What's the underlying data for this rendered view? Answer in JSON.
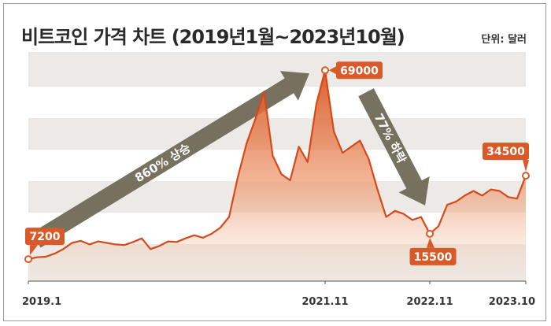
{
  "title": "비트코인 가격 차트 (2019년1월~2023년10월)",
  "unit": "단위: 달러",
  "colors": {
    "line": "#d54a1a",
    "callout": "#d95a28",
    "arrow": "#6b6553"
  },
  "chart_data": {
    "type": "area",
    "ylim": [
      0,
      75000
    ],
    "x_ticks": [
      "2019.1",
      "2021.11",
      "2022.11",
      "2023.10"
    ],
    "callouts": [
      {
        "label": "7200",
        "date": "2019.1",
        "value": 7200
      },
      {
        "label": "69000",
        "date": "2021.11",
        "value": 69000
      },
      {
        "label": "15500",
        "date": "2022.11",
        "value": 15500
      },
      {
        "label": "34500",
        "date": "2023.10",
        "value": 34500
      }
    ],
    "annotations": [
      {
        "text": "860% 상승",
        "from": "2019.1",
        "to": "2021.11"
      },
      {
        "text": "77% 하락",
        "from": "2021.11",
        "to": "2022.11"
      }
    ],
    "series": [
      {
        "x": [
          "2019-01",
          "2019-02",
          "2019-03",
          "2019-04",
          "2019-05",
          "2019-06",
          "2019-07",
          "2019-08",
          "2019-09",
          "2019-10",
          "2019-11",
          "2019-12",
          "2020-01",
          "2020-02",
          "2020-03",
          "2020-04",
          "2020-05",
          "2020-06",
          "2020-07",
          "2020-08",
          "2020-09",
          "2020-10",
          "2020-11",
          "2020-12",
          "2021-01",
          "2021-02",
          "2021-03",
          "2021-04",
          "2021-05",
          "2021-06",
          "2021-07",
          "2021-08",
          "2021-09",
          "2021-10",
          "2021-11",
          "2021-12",
          "2022-01",
          "2022-02",
          "2022-03",
          "2022-04",
          "2022-05",
          "2022-06",
          "2022-07",
          "2022-08",
          "2022-09",
          "2022-10",
          "2022-11",
          "2022-12",
          "2023-01",
          "2023-02",
          "2023-03",
          "2023-04",
          "2023-05",
          "2023-06",
          "2023-07",
          "2023-08",
          "2023-09",
          "2023-10"
        ],
        "values": [
          7200,
          7800,
          8000,
          9000,
          10500,
          12500,
          13200,
          12000,
          13000,
          12500,
          12000,
          11800,
          12800,
          14000,
          10500,
          11500,
          13000,
          12800,
          14000,
          15000,
          14200,
          15500,
          17500,
          21000,
          34000,
          45000,
          53000,
          62000,
          41000,
          35000,
          33000,
          44000,
          39000,
          58000,
          69000,
          49000,
          42000,
          44000,
          46000,
          40000,
          30000,
          21000,
          23000,
          22000,
          20000,
          21000,
          15500,
          18000,
          25000,
          26000,
          28000,
          29500,
          28000,
          30000,
          29500,
          27500,
          27000,
          34500
        ]
      }
    ]
  }
}
